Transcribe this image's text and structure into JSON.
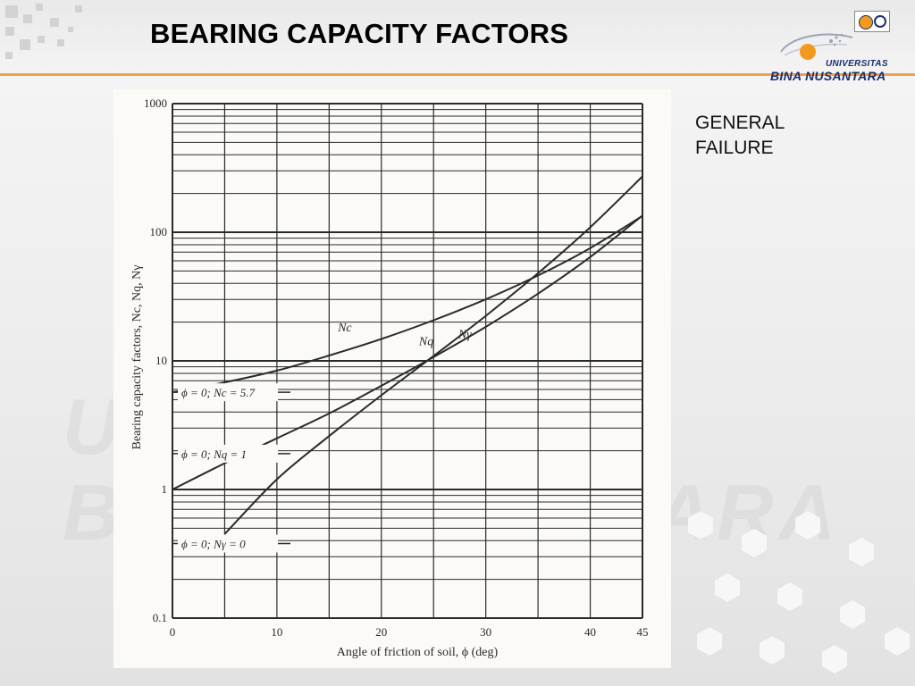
{
  "slide": {
    "title": "BEARING CAPACITY FACTORS",
    "note_lines": [
      "GENERAL",
      "FAILURE"
    ]
  },
  "logo": {
    "top_text": "UNIVERSITAS",
    "bottom_text": "BINA NUSANTARA"
  },
  "colors": {
    "accent_rule": "#f0a24a",
    "logo_orange": "#f39a1e",
    "logo_navy": "#1b2f6e",
    "chart_ink": "#2a2a2a",
    "chart_bg": "#fbfaf7"
  },
  "chart_data": {
    "type": "line",
    "xlabel": "Angle of friction of soil, ϕ (deg)",
    "ylabel": "Bearing capacity factors, Nc, Nq, Nγ",
    "xlim": [
      0,
      45
    ],
    "ylim": [
      0.1,
      1000
    ],
    "yscale": "log",
    "grid": true,
    "x_ticks": [
      0,
      10,
      20,
      30,
      40,
      45
    ],
    "y_ticks": [
      0.1,
      1,
      10,
      100,
      1000
    ],
    "x_tick_labels": [
      "0",
      "10",
      "20",
      "30",
      "40",
      "45"
    ],
    "y_tick_labels": [
      "0.1",
      "1",
      "10",
      "100",
      "1000"
    ],
    "series": [
      {
        "name": "Nc",
        "x": [
          0,
          5,
          10,
          15,
          20,
          25,
          30,
          35,
          40,
          45
        ],
        "values": [
          5.7,
          6.8,
          8.4,
          11.0,
          14.8,
          20.7,
          30.1,
          46.1,
          75.3,
          133.9
        ]
      },
      {
        "name": "Nq",
        "x": [
          0,
          5,
          10,
          15,
          20,
          25,
          30,
          35,
          40,
          45
        ],
        "values": [
          1.0,
          1.6,
          2.5,
          3.9,
          6.4,
          10.7,
          18.4,
          33.3,
          64.2,
          134.9
        ]
      },
      {
        "name": "Nγ",
        "x": [
          5,
          10,
          15,
          20,
          25,
          30,
          35,
          40,
          45
        ],
        "values": [
          0.45,
          1.2,
          2.6,
          5.4,
          10.9,
          22.4,
          48.0,
          109.4,
          271.8
        ]
      }
    ],
    "annotations": [
      {
        "text": "ϕ = 0; Nc = 5.7"
      },
      {
        "text": "ϕ = 0; Nq = 1"
      },
      {
        "text": "ϕ = 0; Nγ = 0"
      }
    ]
  }
}
